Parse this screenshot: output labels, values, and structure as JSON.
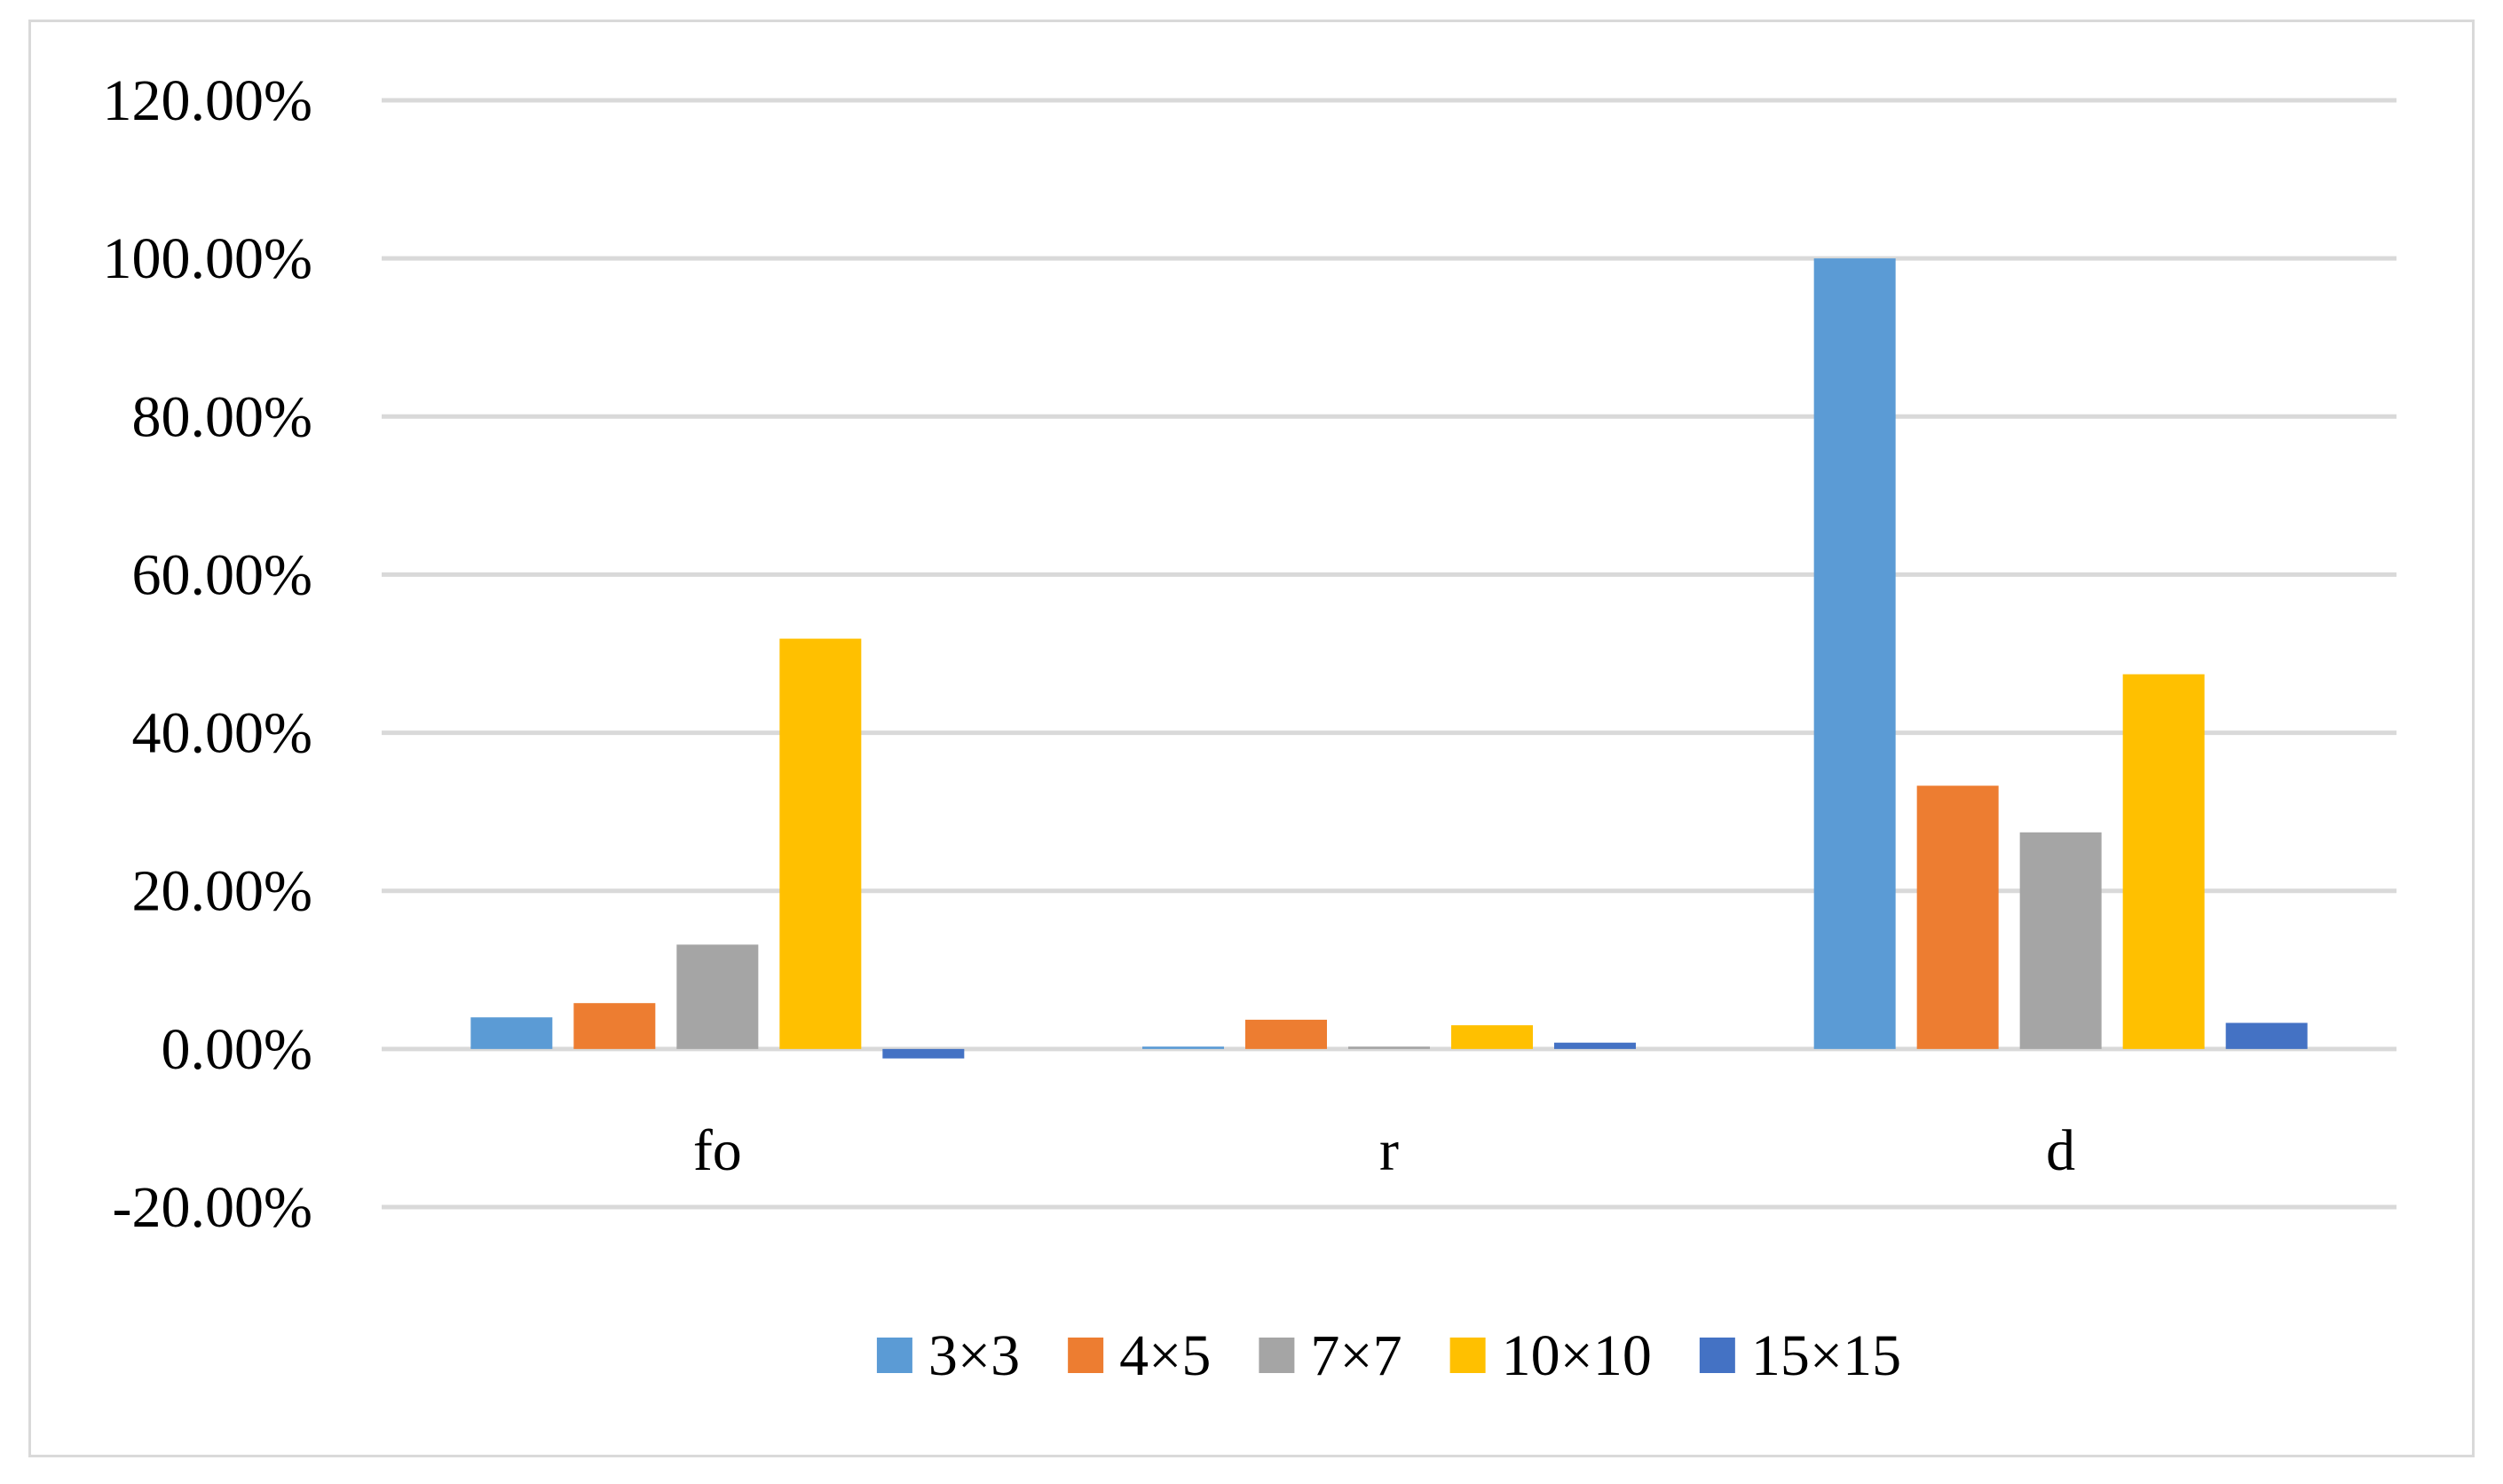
{
  "chart_data": {
    "type": "bar",
    "title": "",
    "xlabel": "",
    "ylabel": "",
    "categories": [
      "fo",
      "r",
      "d"
    ],
    "ylim": [
      -0.2,
      1.2
    ],
    "y_ticks": [
      -0.2,
      0.0,
      0.2,
      0.4,
      0.6,
      0.8,
      1.0,
      1.2
    ],
    "y_tick_labels": [
      "-20.00%",
      "0.00%",
      "20.00%",
      "40.00%",
      "60.00%",
      "80.00%",
      "100.00%",
      "120.00%"
    ],
    "grid": true,
    "legend_position": "bottom",
    "series": [
      {
        "name": "3×3",
        "color": "#5b9bd5",
        "values": [
          0.04,
          0.003,
          1.0
        ]
      },
      {
        "name": "4×5",
        "color": "#ed7d31",
        "values": [
          0.058,
          0.037,
          0.333
        ]
      },
      {
        "name": "7×7",
        "color": "#a5a5a5",
        "values": [
          0.132,
          0.003,
          0.274
        ]
      },
      {
        "name": "10×10",
        "color": "#ffc000",
        "values": [
          0.519,
          0.03,
          0.474
        ]
      },
      {
        "name": "15×15",
        "color": "#4472c4",
        "values": [
          -0.012,
          0.008,
          0.033
        ]
      }
    ]
  }
}
